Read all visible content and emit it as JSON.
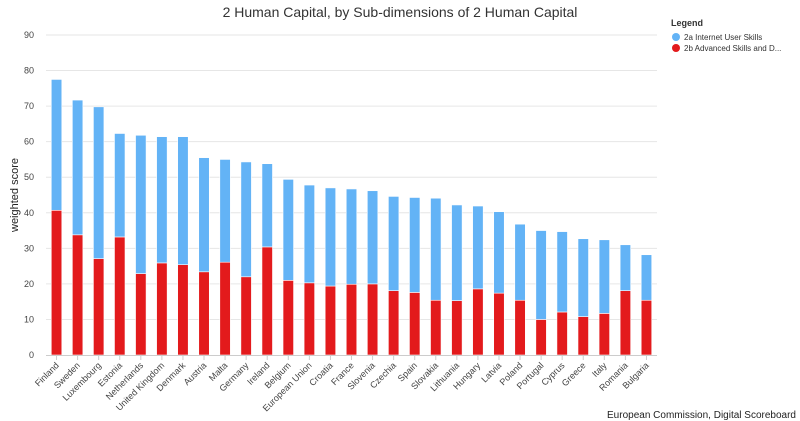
{
  "chart_data": {
    "type": "bar",
    "stacked": true,
    "title": "2 Human Capital, by Sub-dimensions of 2 Human Capital",
    "ylabel": "weighted score",
    "xlabel": "",
    "ylim": [
      0,
      90
    ],
    "yticks": [
      0,
      10,
      20,
      30,
      40,
      50,
      60,
      70,
      80,
      90
    ],
    "grid": true,
    "legend_position": "top-right",
    "legend_title": "Legend",
    "credit": "European Commission, Digital Scoreboard",
    "categories": [
      "Finland",
      "Sweden",
      "Luxembourg",
      "Estonia",
      "Netherlands",
      "United Kingdom",
      "Denmark",
      "Austria",
      "Malta",
      "Germany",
      "Ireland",
      "Belgium",
      "European Union",
      "Croatia",
      "France",
      "Slovenia",
      "Czechia",
      "Spain",
      "Slovakia",
      "Lithuania",
      "Hungary",
      "Latvia",
      "Poland",
      "Portugal",
      "Cyprus",
      "Greece",
      "Italy",
      "Romania",
      "Bulgaria"
    ],
    "series": [
      {
        "name": "2b Advanced Skills and D...",
        "color": "#e31a1c",
        "values": [
          40.7,
          33.8,
          27.1,
          33.2,
          22.9,
          25.9,
          25.4,
          23.4,
          26.1,
          22.0,
          30.4,
          21.0,
          20.3,
          19.4,
          19.9,
          20.0,
          18.1,
          17.6,
          15.4,
          15.3,
          18.6,
          17.4,
          15.4,
          10.0,
          12.1,
          10.8,
          11.7,
          18.1,
          15.4
        ]
      },
      {
        "name": "2a Internet User Skills",
        "color": "#63b3f6",
        "values": [
          36.8,
          37.9,
          42.7,
          29.1,
          38.9,
          35.5,
          36.0,
          32.1,
          28.9,
          32.3,
          23.4,
          28.4,
          27.5,
          27.6,
          26.8,
          26.2,
          26.5,
          26.7,
          28.7,
          26.9,
          23.3,
          22.9,
          21.4,
          25.0,
          22.6,
          21.9,
          20.7,
          12.9,
          12.8
        ]
      }
    ]
  }
}
